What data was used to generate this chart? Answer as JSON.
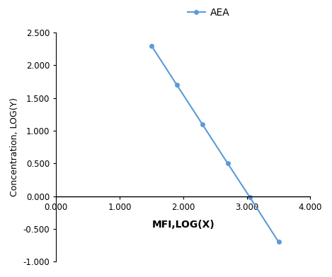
{
  "x": [
    1.5,
    1.9,
    2.3,
    2.7,
    3.05,
    3.5
  ],
  "y": [
    2.3,
    1.7,
    1.1,
    0.5,
    -0.02,
    -0.7
  ],
  "xlim": [
    0.0,
    4.0
  ],
  "ylim": [
    -1.0,
    2.5
  ],
  "xticks": [
    0.0,
    1.0,
    2.0,
    3.0,
    4.0
  ],
  "yticks": [
    -1.0,
    -0.5,
    0.0,
    0.5,
    1.0,
    1.5,
    2.0,
    2.5
  ],
  "xlabel": "MFI,LOG(X)",
  "ylabel": "Concentration, LOG(Y)",
  "legend_label": "AEA",
  "line_color": "#5b9bd5",
  "marker": "o",
  "marker_size": 4,
  "line_width": 1.5,
  "background_color": "#ffffff",
  "xlabel_fontsize": 10,
  "ylabel_fontsize": 9,
  "tick_fontsize": 8.5,
  "legend_fontsize": 10
}
